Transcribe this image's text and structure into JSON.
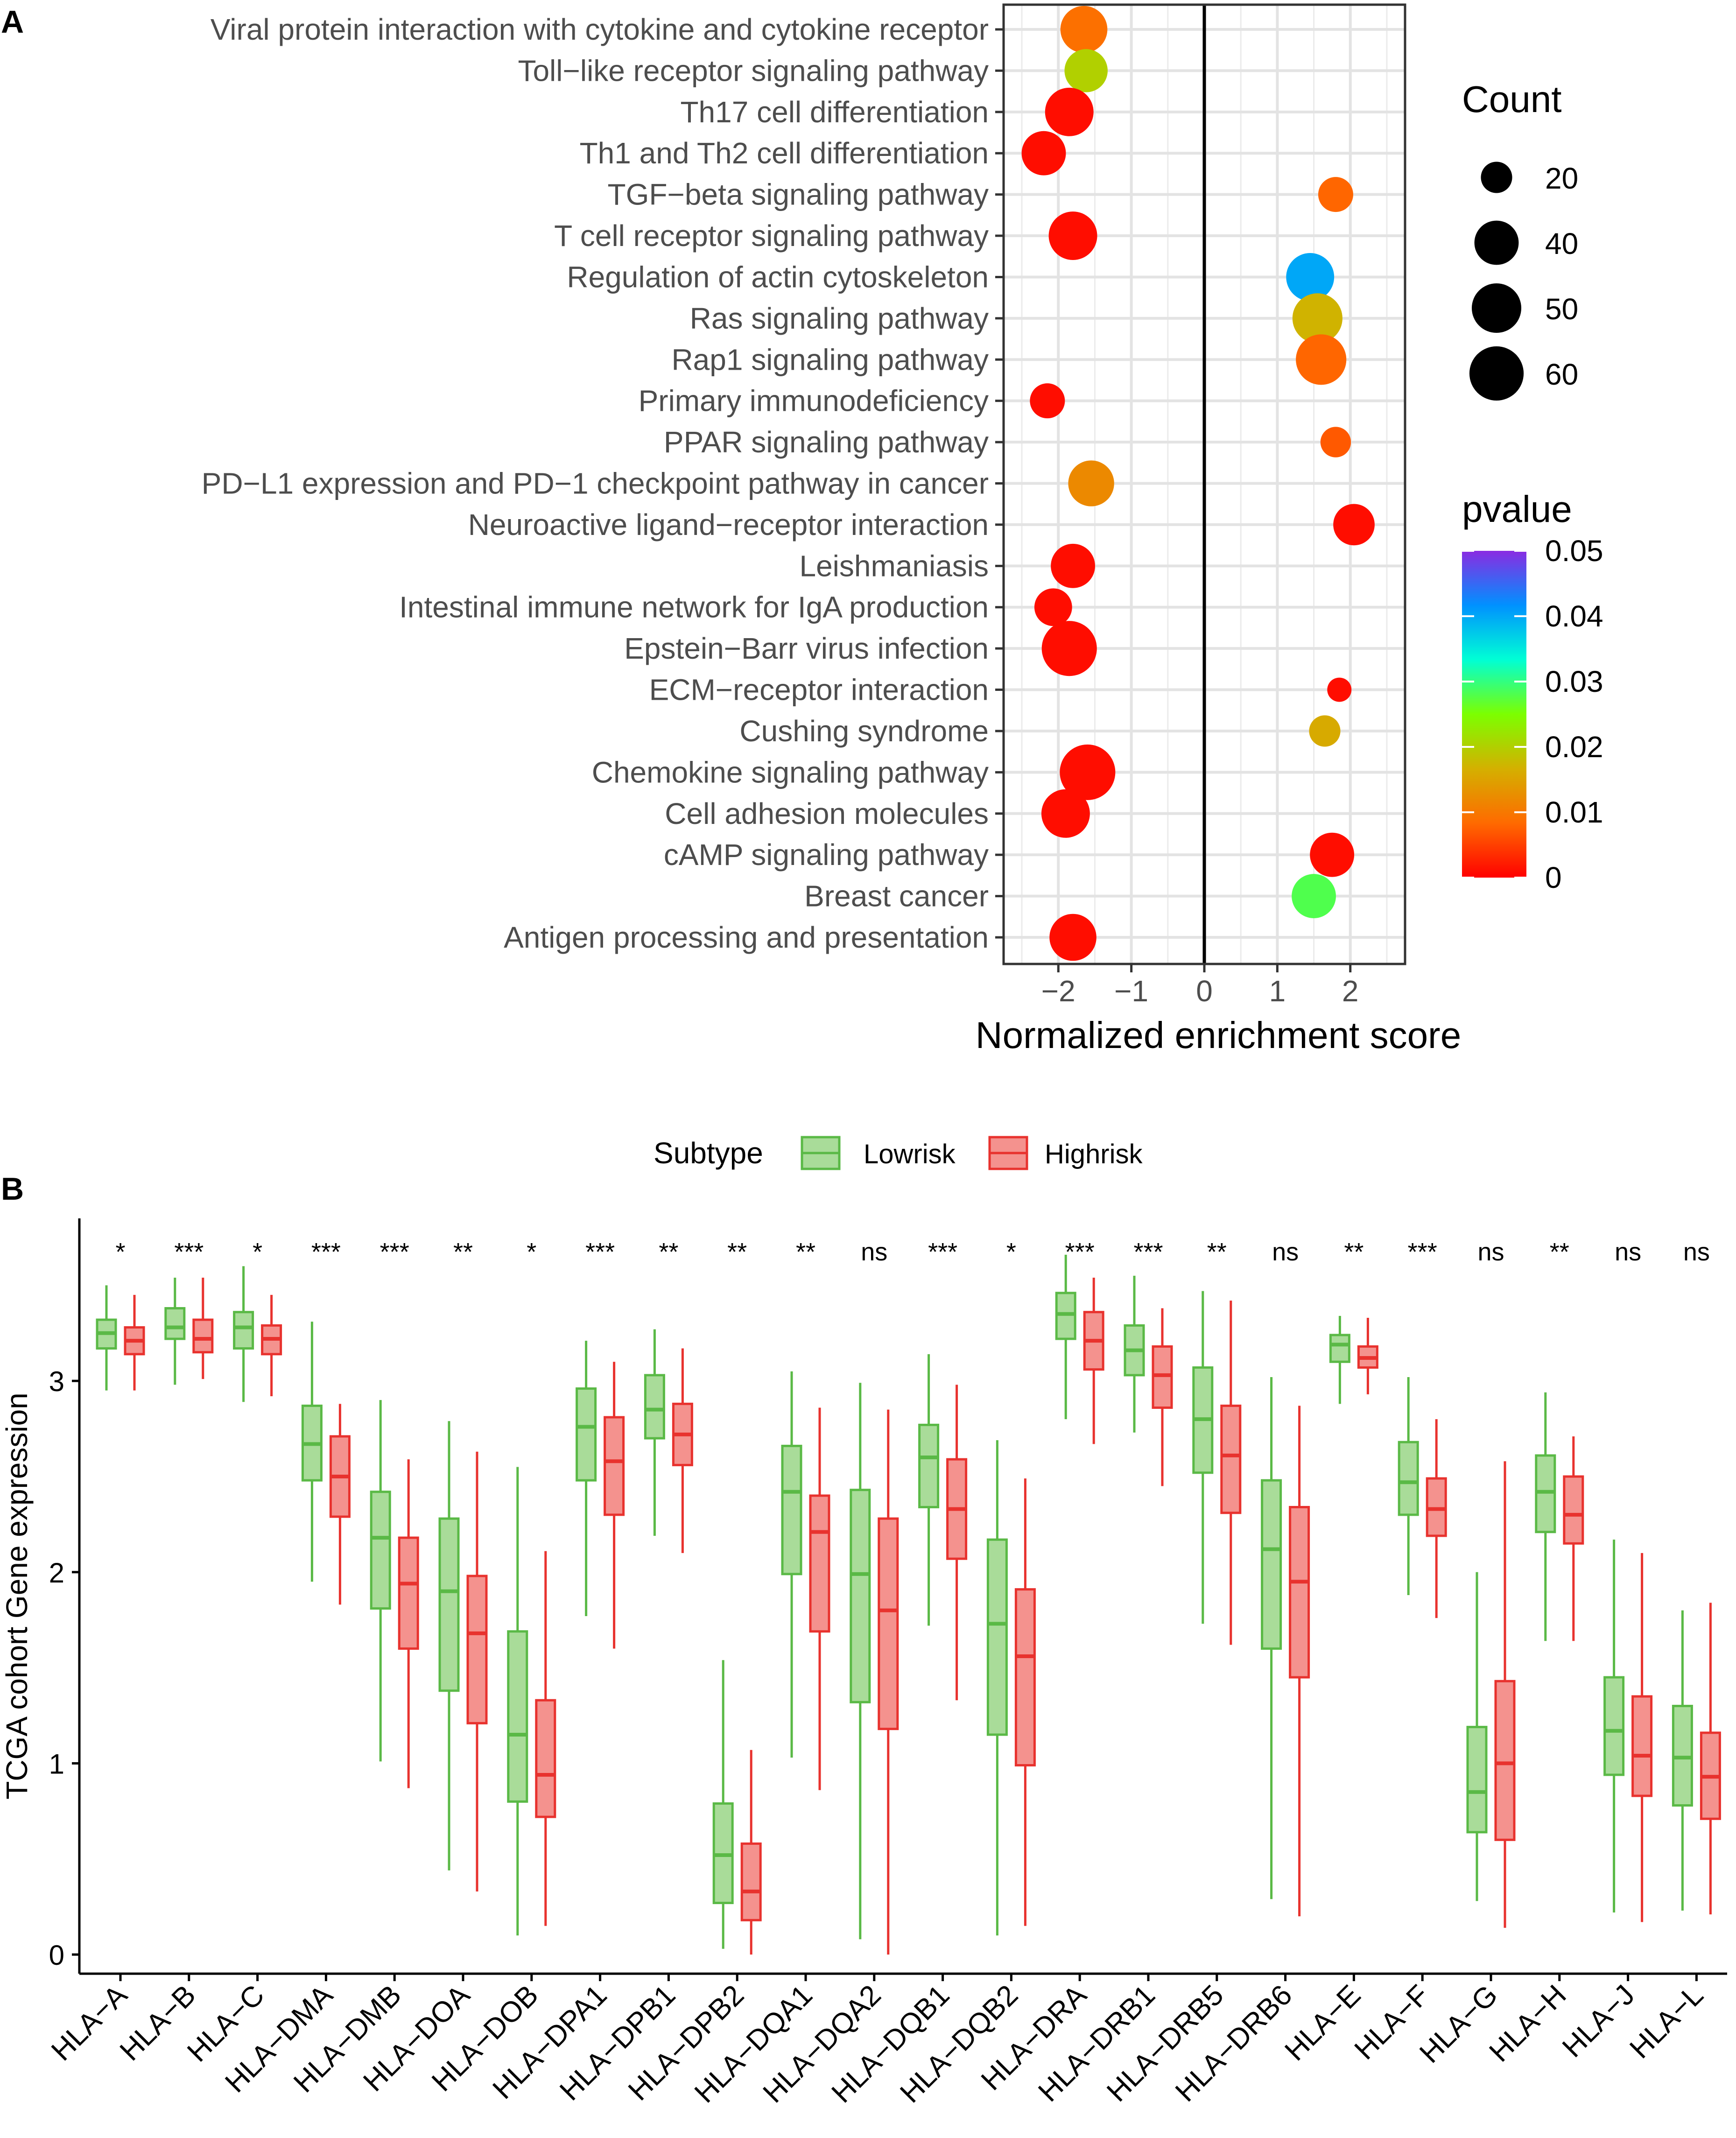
{
  "chart_data": [
    {
      "panel": "A",
      "type": "scatter",
      "xlabel": "Normalized enrichment score",
      "xlim": [
        -2.75,
        2.75
      ],
      "xticks": [
        -2,
        -1,
        0,
        1,
        2
      ],
      "xtick_labels": [
        "−2",
        "−1",
        "0",
        "1",
        "2"
      ],
      "vline": 0,
      "grid": true,
      "legend_position": "right",
      "size_legend": {
        "title": "Count",
        "values": [
          20,
          40,
          50,
          60
        ],
        "labels": [
          "20",
          "40",
          "50",
          "60"
        ]
      },
      "color_legend": {
        "title": "pvalue",
        "min": 0,
        "max": 0.05,
        "ticks": [
          0,
          0.01,
          0.02,
          0.03,
          0.04,
          0.05
        ],
        "tick_labels": [
          "0",
          "0.01",
          "0.02",
          "0.03",
          "0.04",
          "0.05"
        ],
        "stops": [
          "#ff0000",
          "#ff6a00",
          "#d4b000",
          "#7cff00",
          "#00ffd5",
          "#0091ff",
          "#8a2be2"
        ]
      },
      "points": [
        {
          "pathway": "Viral protein interaction with cytokine and cytokine receptor",
          "nes": -1.65,
          "count": 45,
          "pvalue": 0.009
        },
        {
          "pathway": "Toll−like receptor signaling pathway",
          "nes": -1.62,
          "count": 38,
          "pvalue": 0.02
        },
        {
          "pathway": "Th17 cell differentiation",
          "nes": -1.85,
          "count": 48,
          "pvalue": 0.001
        },
        {
          "pathway": "Th1 and Th2 cell differentiation",
          "nes": -2.2,
          "count": 40,
          "pvalue": 0.001
        },
        {
          "pathway": "TGF−beta signaling pathway",
          "nes": 1.8,
          "count": 25,
          "pvalue": 0.008
        },
        {
          "pathway": "T cell receptor signaling pathway",
          "nes": -1.8,
          "count": 48,
          "pvalue": 0.001
        },
        {
          "pathway": "Regulation of actin cytoskeleton",
          "nes": 1.45,
          "count": 47,
          "pvalue": 0.04
        },
        {
          "pathway": "Ras signaling pathway",
          "nes": 1.55,
          "count": 51,
          "pvalue": 0.017
        },
        {
          "pathway": "Rap1 signaling pathway",
          "nes": 1.6,
          "count": 52,
          "pvalue": 0.008
        },
        {
          "pathway": "Primary immunodeficiency",
          "nes": -2.15,
          "count": 25,
          "pvalue": 0.001
        },
        {
          "pathway": "PPAR signaling pathway",
          "nes": 1.8,
          "count": 19,
          "pvalue": 0.007
        },
        {
          "pathway": "PD−L1 expression and PD−1 checkpoint pathway in cancer",
          "nes": -1.55,
          "count": 43,
          "pvalue": 0.012
        },
        {
          "pathway": "Neuroactive ligand−receptor interaction",
          "nes": 2.05,
          "count": 35,
          "pvalue": 0.001
        },
        {
          "pathway": "Leishmaniasis",
          "nes": -1.8,
          "count": 40,
          "pvalue": 0.001
        },
        {
          "pathway": "Intestinal immune network for IgA production",
          "nes": -2.07,
          "count": 29,
          "pvalue": 0.001
        },
        {
          "pathway": "Epstein−Barr virus infection",
          "nes": -1.85,
          "count": 62,
          "pvalue": 0.001
        },
        {
          "pathway": "ECM−receptor interaction",
          "nes": 1.85,
          "count": 12,
          "pvalue": 0.001
        },
        {
          "pathway": "Cushing syndrome",
          "nes": 1.65,
          "count": 20,
          "pvalue": 0.016
        },
        {
          "pathway": "Chemokine signaling pathway",
          "nes": -1.6,
          "count": 63,
          "pvalue": 0.001
        },
        {
          "pathway": "Cell adhesion molecules",
          "nes": -1.9,
          "count": 48,
          "pvalue": 0.001
        },
        {
          "pathway": "cAMP signaling pathway",
          "nes": 1.75,
          "count": 40,
          "pvalue": 0.001
        },
        {
          "pathway": "Breast cancer",
          "nes": 1.5,
          "count": 40,
          "pvalue": 0.028
        },
        {
          "pathway": "Antigen processing and presentation",
          "nes": -1.8,
          "count": 45,
          "pvalue": 0.001
        }
      ]
    },
    {
      "panel": "B",
      "type": "box",
      "ylabel": "TCGA cohort Gene expression",
      "ylim": [
        -0.1,
        3.85
      ],
      "yticks": [
        0,
        1,
        2,
        3
      ],
      "ytick_labels": [
        "0",
        "1",
        "2",
        "3"
      ],
      "legend_title": "Subtype",
      "series": [
        {
          "name": "Lowrisk",
          "fill": "#a9dc99",
          "stroke": "#5ab946"
        },
        {
          "name": "Highrisk",
          "fill": "#f4928e",
          "stroke": "#e8322e"
        }
      ],
      "categories": [
        "HLA−A",
        "HLA−B",
        "HLA−C",
        "HLA−DMA",
        "HLA−DMB",
        "HLA−DOA",
        "HLA−DOB",
        "HLA−DPA1",
        "HLA−DPB1",
        "HLA−DPB2",
        "HLA−DQA1",
        "HLA−DQA2",
        "HLA−DQB1",
        "HLA−DQB2",
        "HLA−DRA",
        "HLA−DRB1",
        "HLA−DRB5",
        "HLA−DRB6",
        "HLA−E",
        "HLA−F",
        "HLA−G",
        "HLA−H",
        "HLA−J",
        "HLA−L"
      ],
      "significance": [
        "*",
        "***",
        "*",
        "***",
        "***",
        "**",
        "*",
        "***",
        "**",
        "**",
        "**",
        "ns",
        "***",
        "*",
        "***",
        "***",
        "**",
        "ns",
        "**",
        "***",
        "ns",
        "**",
        "ns",
        "ns"
      ],
      "boxes": {
        "Lowrisk": [
          [
            2.95,
            3.17,
            3.25,
            3.32,
            3.5
          ],
          [
            2.98,
            3.22,
            3.28,
            3.38,
            3.54
          ],
          [
            2.89,
            3.17,
            3.28,
            3.36,
            3.6
          ],
          [
            1.95,
            2.48,
            2.67,
            2.87,
            3.31
          ],
          [
            1.01,
            1.81,
            2.18,
            2.42,
            2.9
          ],
          [
            0.44,
            1.38,
            1.9,
            2.28,
            2.79
          ],
          [
            0.1,
            0.8,
            1.15,
            1.69,
            2.55
          ],
          [
            1.77,
            2.48,
            2.76,
            2.96,
            3.21
          ],
          [
            2.19,
            2.7,
            2.85,
            3.03,
            3.27
          ],
          [
            0.03,
            0.27,
            0.52,
            0.79,
            1.54
          ],
          [
            1.03,
            1.99,
            2.42,
            2.66,
            3.05
          ],
          [
            0.08,
            1.32,
            1.99,
            2.43,
            2.99
          ],
          [
            1.72,
            2.34,
            2.6,
            2.77,
            3.14
          ],
          [
            0.1,
            1.15,
            1.73,
            2.17,
            2.69
          ],
          [
            2.8,
            3.22,
            3.35,
            3.46,
            3.66
          ],
          [
            2.73,
            3.03,
            3.16,
            3.29,
            3.55
          ],
          [
            1.73,
            2.52,
            2.8,
            3.07,
            3.47
          ],
          [
            0.29,
            1.6,
            2.12,
            2.48,
            3.02
          ],
          [
            2.88,
            3.1,
            3.19,
            3.24,
            3.34
          ],
          [
            1.88,
            2.3,
            2.47,
            2.68,
            3.02
          ],
          [
            0.28,
            0.64,
            0.85,
            1.19,
            2.0
          ],
          [
            1.64,
            2.21,
            2.42,
            2.61,
            2.94
          ],
          [
            0.22,
            0.94,
            1.17,
            1.45,
            2.17
          ],
          [
            0.23,
            0.78,
            1.03,
            1.3,
            1.8
          ]
        ],
        "Highrisk": [
          [
            2.95,
            3.14,
            3.21,
            3.28,
            3.45
          ],
          [
            3.01,
            3.15,
            3.22,
            3.32,
            3.54
          ],
          [
            2.92,
            3.14,
            3.22,
            3.29,
            3.45
          ],
          [
            1.83,
            2.29,
            2.5,
            2.71,
            2.88
          ],
          [
            0.87,
            1.6,
            1.94,
            2.18,
            2.59
          ],
          [
            0.33,
            1.21,
            1.68,
            1.98,
            2.63
          ],
          [
            0.15,
            0.72,
            0.94,
            1.33,
            2.11
          ],
          [
            1.6,
            2.3,
            2.58,
            2.81,
            3.1
          ],
          [
            2.1,
            2.56,
            2.72,
            2.88,
            3.17
          ],
          [
            0.0,
            0.18,
            0.33,
            0.58,
            1.07
          ],
          [
            0.86,
            1.69,
            2.21,
            2.4,
            2.86
          ],
          [
            0.0,
            1.18,
            1.8,
            2.28,
            2.85
          ],
          [
            1.33,
            2.07,
            2.33,
            2.59,
            2.98
          ],
          [
            0.15,
            0.99,
            1.56,
            1.91,
            2.49
          ],
          [
            2.67,
            3.06,
            3.21,
            3.36,
            3.54
          ],
          [
            2.45,
            2.86,
            3.03,
            3.18,
            3.38
          ],
          [
            1.62,
            2.31,
            2.61,
            2.87,
            3.42
          ],
          [
            0.2,
            1.45,
            1.95,
            2.34,
            2.87
          ],
          [
            2.93,
            3.07,
            3.12,
            3.18,
            3.33
          ],
          [
            1.76,
            2.19,
            2.33,
            2.49,
            2.8
          ],
          [
            0.14,
            0.6,
            1.0,
            1.43,
            2.58
          ],
          [
            1.64,
            2.15,
            2.3,
            2.5,
            2.71
          ],
          [
            0.17,
            0.83,
            1.04,
            1.35,
            2.1
          ],
          [
            0.21,
            0.71,
            0.93,
            1.16,
            1.84
          ]
        ]
      }
    }
  ],
  "labels": {
    "panel_a": "A",
    "panel_b": "B"
  }
}
